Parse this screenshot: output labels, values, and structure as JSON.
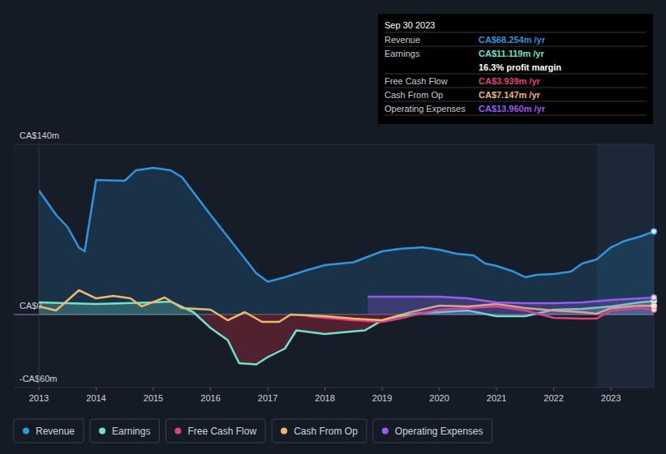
{
  "chart_data": {
    "type": "line",
    "xlim": [
      2013,
      2023.75
    ],
    "xticks": [
      2013,
      2014,
      2015,
      2016,
      2017,
      2018,
      2019,
      2020,
      2021,
      2022,
      2023
    ],
    "ylim": [
      -60,
      140
    ],
    "yticks": [
      {
        "value": 140,
        "label": "CA$140m"
      },
      {
        "value": 0,
        "label": "CA$0"
      },
      {
        "value": -60,
        "label": "-CA$60m"
      }
    ],
    "grid": true,
    "legend": "bottom",
    "series": [
      {
        "name": "Revenue",
        "color": "#2e95e0",
        "type": "area",
        "marker": "circle",
        "x": [
          2013,
          2013.3,
          2013.5,
          2013.7,
          2013.8,
          2014.0,
          2014.5,
          2014.7,
          2015.0,
          2015.3,
          2015.5,
          2016.0,
          2016.5,
          2016.8,
          2017.0,
          2017.3,
          2017.7,
          2018.0,
          2018.5,
          2019.0,
          2019.3,
          2019.7,
          2020.0,
          2020.3,
          2020.6,
          2020.8,
          2021.0,
          2021.3,
          2021.5,
          2021.7,
          2022.0,
          2022.3,
          2022.5,
          2022.75,
          2023.0,
          2023.25,
          2023.5,
          2023.75
        ],
        "values": [
          102,
          82,
          72,
          55,
          52,
          110.7,
          110,
          118.7,
          120.7,
          118.7,
          113,
          82,
          52,
          34,
          27,
          30.7,
          36.7,
          40.7,
          43,
          52,
          54,
          55.3,
          53.3,
          50,
          48.7,
          42,
          40,
          35.3,
          30.7,
          32.7,
          33.3,
          35.3,
          42,
          45.3,
          55.3,
          60.7,
          64,
          68.254
        ]
      },
      {
        "name": "Earnings",
        "color": "#6fe3cc",
        "type": "area",
        "marker": "circle",
        "x": [
          2013,
          2014,
          2015,
          2015.3,
          2015.7,
          2016.0,
          2016.3,
          2016.5,
          2016.8,
          2017.0,
          2017.3,
          2017.5,
          2018.0,
          2018.3,
          2018.7,
          2019.0,
          2019.3,
          2019.7,
          2020.0,
          2020.5,
          2021.0,
          2021.5,
          2022.0,
          2022.5,
          2023.0,
          2023.5,
          2023.75
        ],
        "values": [
          10,
          8.7,
          10,
          10.7,
          2,
          -11,
          -21,
          -40,
          -41,
          -35,
          -28,
          -13,
          -16,
          -14.7,
          -13,
          -4.7,
          -1.3,
          1.3,
          2,
          3.3,
          -1.3,
          -1.3,
          4,
          4.7,
          6.7,
          10,
          11.119
        ]
      },
      {
        "name": "Free Cash Flow",
        "color": "#e0407b",
        "type": "line",
        "marker": "circle",
        "x": [
          2017.7,
          2018.0,
          2018.5,
          2019.0,
          2019.3,
          2019.6,
          2020.0,
          2020.5,
          2021.0,
          2021.5,
          2022.0,
          2022.5,
          2022.75,
          2023.0,
          2023.5,
          2023.75
        ],
        "values": [
          -1.3,
          -2.7,
          -4.7,
          -6,
          -3.3,
          0,
          4,
          5.3,
          6.7,
          3.3,
          -2.7,
          -3.3,
          -3.3,
          3.3,
          5.3,
          3.939
        ]
      },
      {
        "name": "Cash From Op",
        "color": "#f0b86e",
        "type": "line",
        "marker": "circle",
        "x": [
          2013,
          2013.3,
          2013.7,
          2014.0,
          2014.3,
          2014.6,
          2014.8,
          2015.2,
          2015.5,
          2016.0,
          2016.3,
          2016.6,
          2016.9,
          2017.2,
          2017.4,
          2018.0,
          2018.5,
          2019.0,
          2019.5,
          2020.0,
          2020.5,
          2021.0,
          2021.5,
          2022.0,
          2022.5,
          2022.75,
          2023.0,
          2023.5,
          2023.75
        ],
        "values": [
          6.7,
          3.3,
          20,
          13.3,
          15.3,
          13.3,
          6.7,
          14,
          5.3,
          4,
          -4.7,
          2,
          -6,
          -6,
          0,
          -1.3,
          -3.3,
          -4.7,
          2,
          7.3,
          6.7,
          8.7,
          5.3,
          3.3,
          2,
          0.7,
          5.3,
          7.3,
          7.147
        ]
      },
      {
        "name": "Operating Expenses",
        "color": "#9a5cf0",
        "type": "area",
        "marker": "circle",
        "x": [
          2018.75,
          2019.5,
          2020.0,
          2020.5,
          2021.0,
          2021.5,
          2022.0,
          2022.5,
          2023.0,
          2023.75
        ],
        "values": [
          14.7,
          14.7,
          14.7,
          13.3,
          10,
          9.3,
          9.3,
          10,
          12,
          13.96
        ]
      }
    ],
    "annotation": {
      "date": "Sep 30 2023",
      "rows": [
        {
          "label": "Revenue",
          "value": "CA$68.254m /yr"
        },
        {
          "label": "Earnings",
          "value": "CA$11.119m /yr",
          "note": "16.3% profit margin"
        },
        {
          "label": "Free Cash Flow",
          "value": "CA$3.939m /yr"
        },
        {
          "label": "Cash From Op",
          "value": "CA$7.147m /yr"
        },
        {
          "label": "Operating Expenses",
          "value": "CA$13.960m /yr"
        }
      ]
    }
  }
}
